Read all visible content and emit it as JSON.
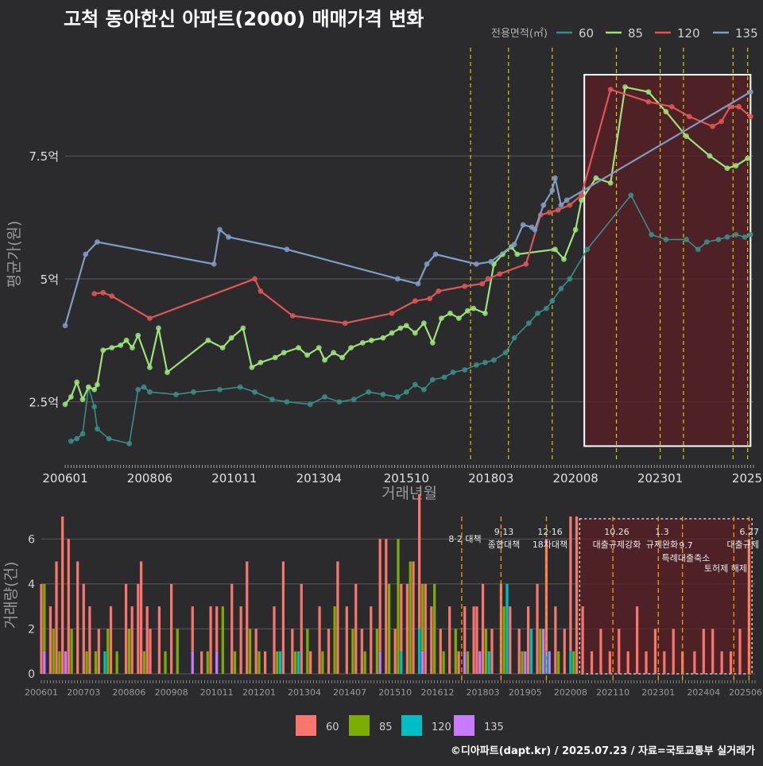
{
  "title": "고척 동아한신 아파트(2000) 매매가격 변화",
  "footer": "©디아파트(dapt.kr) / 2025.07.23 / 자료=국토교통부 실거래가",
  "colors": {
    "background": "#2b2b2d",
    "grid": "#5a5a5c",
    "policy_line": "#d8c800",
    "policy_line_bottom": "#f0a000",
    "highlight_fill": "#5a1f24",
    "s60_top": "#3a8d8a",
    "s85_top": "#9be37a",
    "s120_top": "#e05555",
    "s135_top": "#7f9cc4",
    "s60_bar": "#f8766d",
    "s85_bar": "#7cae00",
    "s120_bar": "#00bfc4",
    "s135_bar": "#c77cff"
  },
  "chart_data": [
    {
      "type": "line",
      "title": "고척 동아한신 아파트(2000) 매매가격 변화",
      "xlabel": "거래년월",
      "ylabel": "평균가(원)",
      "legend_title": "전용면적(㎡)",
      "legend_position": "top-right",
      "ylim": [
        1.3,
        9.7
      ],
      "y_ticks": [
        2.5,
        5,
        7.5
      ],
      "y_tick_labels": [
        "2.5억",
        "5억",
        "7.5억"
      ],
      "x_ticks": [
        "200601",
        "200806",
        "201011",
        "201304",
        "201510",
        "201803",
        "202008",
        "202301",
        "202509"
      ],
      "x_tick_labels": [
        "200601",
        "200806",
        "201011",
        "201304",
        "201510",
        "201803",
        "202008",
        "202301",
        "2025"
      ],
      "x_range": [
        "200601",
        "202509"
      ],
      "highlight_range": [
        "202011",
        "202508"
      ],
      "policy_lines": [
        "201708",
        "201809",
        "201912",
        "202110",
        "202301",
        "202309",
        "202502",
        "202507"
      ],
      "series": [
        {
          "name": "60",
          "x": [
            "200603",
            "200605",
            "200607",
            "200609",
            "200611",
            "200612",
            "200704",
            "200711",
            "200802",
            "200804",
            "200806",
            "200903",
            "200909",
            "201006",
            "201101",
            "201106",
            "201112",
            "201205",
            "201301",
            "201306",
            "201311",
            "201404",
            "201409",
            "201502",
            "201507",
            "201510",
            "201601",
            "201604",
            "201607",
            "201611",
            "201702",
            "201706",
            "201710",
            "201801",
            "201804",
            "201808",
            "201811",
            "201904",
            "201907",
            "201910",
            "201912",
            "202003",
            "202006",
            "202012",
            "202203",
            "202210",
            "202303",
            "202310",
            "202402",
            "202405",
            "202409",
            "202412",
            "202503",
            "202506",
            "202508"
          ],
          "y": [
            1.7,
            1.75,
            1.85,
            2.8,
            2.4,
            1.95,
            1.75,
            1.65,
            2.75,
            2.8,
            2.7,
            2.65,
            2.7,
            2.75,
            2.8,
            2.7,
            2.55,
            2.5,
            2.45,
            2.6,
            2.5,
            2.55,
            2.7,
            2.65,
            2.6,
            2.7,
            2.85,
            2.75,
            2.95,
            3.0,
            3.1,
            3.15,
            3.25,
            3.3,
            3.35,
            3.5,
            3.8,
            4.1,
            4.3,
            4.4,
            4.55,
            4.8,
            5.0,
            5.6,
            6.7,
            5.9,
            5.8,
            5.8,
            5.6,
            5.75,
            5.8,
            5.85,
            5.9,
            5.85,
            5.9
          ]
        },
        {
          "name": "85",
          "x": [
            "200601",
            "200603",
            "200605",
            "200607",
            "200609",
            "200611",
            "200612",
            "200702",
            "200705",
            "200708",
            "200710",
            "200712",
            "200802",
            "200806",
            "200809",
            "200812",
            "201002",
            "201007",
            "201010",
            "201102",
            "201105",
            "201108",
            "201201",
            "201204",
            "201209",
            "201212",
            "201304",
            "201306",
            "201309",
            "201312",
            "201403",
            "201407",
            "201410",
            "201502",
            "201505",
            "201508",
            "201510",
            "201601",
            "201604",
            "201607",
            "201610",
            "201701",
            "201704",
            "201707",
            "201709",
            "201801",
            "201804",
            "201807",
            "201810",
            "201812",
            "202001",
            "202004",
            "202008",
            "202010",
            "202103",
            "202108",
            "202201",
            "202209",
            "202303",
            "202310",
            "202406",
            "202412",
            "202503",
            "202507"
          ],
          "y": [
            2.45,
            2.6,
            2.9,
            2.55,
            2.8,
            2.75,
            2.85,
            3.55,
            3.6,
            3.65,
            3.75,
            3.6,
            3.85,
            3.2,
            4.0,
            3.1,
            3.75,
            3.6,
            3.8,
            4.0,
            3.2,
            3.3,
            3.4,
            3.5,
            3.6,
            3.45,
            3.6,
            3.35,
            3.5,
            3.4,
            3.6,
            3.7,
            3.75,
            3.8,
            3.9,
            4.0,
            4.05,
            3.9,
            4.1,
            3.7,
            4.2,
            4.3,
            4.2,
            4.35,
            4.4,
            4.3,
            5.3,
            5.5,
            5.65,
            5.5,
            5.6,
            5.4,
            6.0,
            6.6,
            7.05,
            6.95,
            8.9,
            8.8,
            8.4,
            7.9,
            7.5,
            7.25,
            7.3,
            7.45
          ]
        },
        {
          "name": "120",
          "x": [
            "200611",
            "200702",
            "200705",
            "200806",
            "201106",
            "201108",
            "201207",
            "201401",
            "201505",
            "201601",
            "201606",
            "201609",
            "201706",
            "201712",
            "201802",
            "201806",
            "201903",
            "201908",
            "201911",
            "202002",
            "202006",
            "202010",
            "202108",
            "202209",
            "202305",
            "202311",
            "202407",
            "202410",
            "202501",
            "202504",
            "202508"
          ],
          "y": [
            4.7,
            4.72,
            4.65,
            4.2,
            5.0,
            4.75,
            4.25,
            4.1,
            4.3,
            4.55,
            4.6,
            4.75,
            4.85,
            4.9,
            5.0,
            5.1,
            5.3,
            6.3,
            6.35,
            6.4,
            6.5,
            6.7,
            8.85,
            8.6,
            8.5,
            8.3,
            8.1,
            8.2,
            8.5,
            8.5,
            8.3
          ]
        },
        {
          "name": "135",
          "x": [
            "200601",
            "200608",
            "200612",
            "201004",
            "201006",
            "201009",
            "201205",
            "201507",
            "201602",
            "201605",
            "201608",
            "201710",
            "201803",
            "201811",
            "201902",
            "201905",
            "201906",
            "201909",
            "201912",
            "202001",
            "202003",
            "202005",
            "202508"
          ],
          "y": [
            4.05,
            5.5,
            5.75,
            5.3,
            6.0,
            5.85,
            5.6,
            5.0,
            4.9,
            5.3,
            5.5,
            5.3,
            5.35,
            5.7,
            6.1,
            6.05,
            6.0,
            6.5,
            6.8,
            7.05,
            6.5,
            6.6,
            8.8
          ]
        }
      ]
    },
    {
      "type": "bar",
      "ylabel": "거래량(건)",
      "ylim": [
        0,
        7
      ],
      "y_ticks": [
        0,
        2,
        4,
        6
      ],
      "x_tick_labels": [
        "200601",
        "200703",
        "200806",
        "200908",
        "201011",
        "201201",
        "201304",
        "201407",
        "201510",
        "201612",
        "201803",
        "201905",
        "202008",
        "202110",
        "202301",
        "202404",
        "202506"
      ],
      "highlight_range": [
        "202011",
        "202508"
      ],
      "policy_lines": [
        "201708",
        "201809",
        "201912",
        "202110",
        "202301",
        "202309",
        "202502",
        "202507"
      ],
      "annotations": [
        {
          "line1": "8·2 대책",
          "line2": ""
        },
        {
          "line1": "9·13",
          "line2": "종합대책"
        },
        {
          "line1": "12·16",
          "line2": "18차대책"
        },
        {
          "line1": "10.26",
          "line2": "대출규제강화"
        },
        {
          "line1": "1.3",
          "line2": "규제완화"
        },
        {
          "line1": "9.7",
          "line2": "특례대출축소"
        },
        {
          "line1": "",
          "line2": "토허제 해제"
        },
        {
          "line1": "6.27",
          "line2": "대출규제"
        }
      ],
      "series": [
        {
          "name": "60",
          "x": [
            "200601",
            "200604",
            "200606",
            "200608",
            "200610",
            "200701",
            "200703",
            "200705",
            "200708",
            "200712",
            "200805",
            "200807",
            "200809",
            "200810",
            "200812",
            "200901",
            "200904",
            "200908",
            "201003",
            "201006",
            "201009",
            "201011",
            "201104",
            "201107",
            "201109",
            "201112",
            "201203",
            "201206",
            "201209",
            "201212",
            "201303",
            "201306",
            "201309",
            "201312",
            "201403",
            "201406",
            "201409",
            "201411",
            "201502",
            "201505",
            "201507",
            "201510",
            "201512",
            "201602",
            "201604",
            "201606",
            "201608",
            "201610",
            "201701",
            "201704",
            "201707",
            "201709",
            "201712",
            "201801",
            "201803",
            "201806",
            "201809",
            "201812",
            "201903",
            "201906",
            "201909",
            "201912",
            "202003",
            "202006",
            "202008",
            "202010",
            "202012",
            "202103",
            "202106",
            "202109",
            "202112",
            "202203",
            "202206",
            "202209",
            "202212",
            "202303",
            "202306",
            "202309",
            "202401",
            "202404",
            "202407",
            "202410",
            "202501",
            "202504",
            "202507"
          ],
          "values": [
            4,
            3,
            5,
            7,
            6,
            5,
            4,
            3,
            2,
            3,
            4,
            3,
            4,
            5,
            3,
            2,
            3,
            4,
            2,
            1,
            3,
            2,
            4,
            3,
            5,
            2,
            1,
            3,
            5,
            2,
            4,
            1,
            3,
            2,
            5,
            3,
            4,
            2,
            3,
            5,
            6,
            2,
            3,
            4,
            5,
            6,
            4,
            3,
            2,
            3,
            1,
            2,
            3,
            3,
            4,
            2,
            4,
            3,
            2,
            3,
            4,
            5,
            3,
            2,
            6,
            7,
            3,
            1,
            2,
            1,
            2,
            1,
            3,
            1,
            2,
            1,
            2,
            1,
            1,
            2,
            2,
            1,
            1,
            2,
            6
          ]
        },
        {
          "name": "85",
          "x": [
            "200602",
            "200605",
            "200607",
            "200611",
            "200704",
            "200707",
            "200711",
            "200802",
            "200806",
            "200811",
            "200906",
            "200910",
            "201008",
            "201101",
            "201105",
            "201110",
            "201201",
            "201207",
            "201301",
            "201305",
            "201310",
            "201402",
            "201408",
            "201412",
            "201504",
            "201508",
            "201511",
            "201603",
            "201607",
            "201611",
            "201702",
            "201706",
            "201710",
            "201804",
            "201810",
            "201904",
            "201910",
            "202004",
            "202009"
          ],
          "values": [
            3,
            2,
            1,
            2,
            1,
            1,
            2,
            1,
            2,
            1,
            1,
            2,
            1,
            3,
            1,
            2,
            1,
            1,
            1,
            2,
            1,
            3,
            2,
            1,
            2,
            4,
            6,
            5,
            3,
            4,
            1,
            2,
            1,
            2,
            3,
            1,
            2,
            1,
            1
          ]
        },
        {
          "name": "120",
          "x": [
            "200710",
            "201208",
            "201302",
            "201512",
            "201606",
            "201805",
            "201811",
            "201907",
            "201912",
            "202008"
          ],
          "values": [
            1,
            1,
            1,
            1,
            2,
            1,
            4,
            2,
            1,
            1
          ]
        },
        {
          "name": "135",
          "x": [
            "200602",
            "200609",
            "201003",
            "201011",
            "201505",
            "201607",
            "201709",
            "201802",
            "201905",
            "201911",
            "202001"
          ],
          "values": [
            1,
            1,
            1,
            1,
            1,
            1,
            1,
            1,
            1,
            2,
            1
          ]
        }
      ],
      "legend_position": "bottom",
      "legend_entries": [
        "60",
        "85",
        "120",
        "135"
      ]
    }
  ]
}
